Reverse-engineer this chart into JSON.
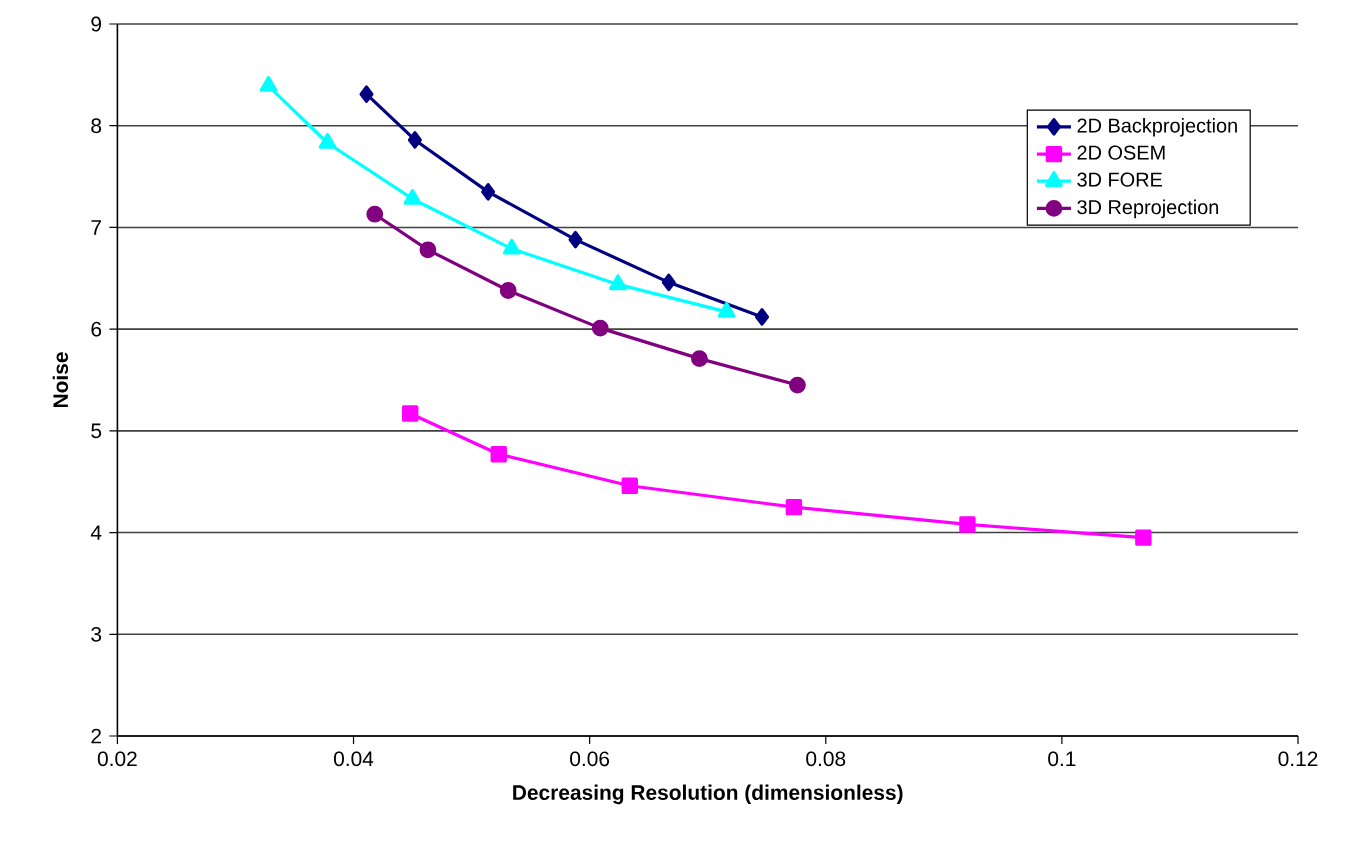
{
  "chart_data": {
    "type": "line",
    "xlabel": "Decreasing Resolution (dimensionless)",
    "ylabel": "Noise",
    "xlim": [
      0.02,
      0.12
    ],
    "xticks": [
      0.02,
      0.04,
      0.06,
      0.08,
      0.1,
      0.12
    ],
    "ylim": [
      2,
      9
    ],
    "yticks": [
      2,
      3,
      4,
      5,
      6,
      7,
      8,
      9
    ],
    "grid": "y",
    "legend": "right",
    "line_style": "solid",
    "series": [
      {
        "name": "2D Backprojection",
        "color": "#000080",
        "marker": "diamond",
        "x": [
          0.0411,
          0.0452,
          0.0514,
          0.0588,
          0.0667,
          0.0746
        ],
        "values": [
          8.31,
          7.86,
          7.35,
          6.88,
          6.46,
          6.12
        ]
      },
      {
        "name": "2D OSEM",
        "color": "#ff00ff",
        "marker": "square",
        "x": [
          0.0448,
          0.0523,
          0.0634,
          0.0773,
          0.092,
          0.1069
        ],
        "values": [
          5.17,
          4.77,
          4.46,
          4.25,
          4.08,
          3.95
        ]
      },
      {
        "name": "3D FORE",
        "color": "#00ffff",
        "marker": "triangle",
        "x": [
          0.0328,
          0.0378,
          0.045,
          0.0534,
          0.0624,
          0.0716
        ],
        "values": [
          8.39,
          7.83,
          7.28,
          6.79,
          6.44,
          6.17
        ]
      },
      {
        "name": "3D Reprojection",
        "color": "#800080",
        "marker": "circle",
        "x": [
          0.0418,
          0.0463,
          0.0531,
          0.0609,
          0.0693,
          0.0776
        ],
        "values": [
          7.13,
          6.78,
          6.38,
          6.01,
          5.71,
          5.45
        ]
      }
    ]
  }
}
